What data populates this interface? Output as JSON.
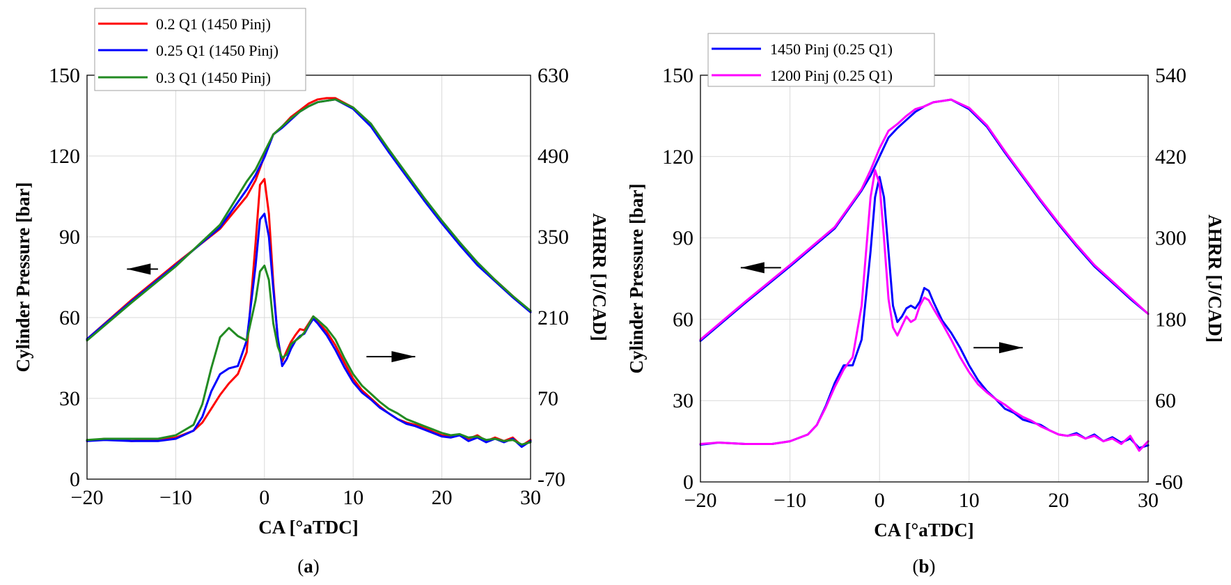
{
  "chart_data": [
    {
      "type": "line",
      "panel_label": "a",
      "xlabel": "CA [°aTDC]",
      "ylabel_left": "Cylinder Pressure [bar]",
      "ylabel_right": "AHRR [J/CAD]",
      "xlim": [
        -20,
        30
      ],
      "xticks": [
        -20,
        -10,
        0,
        10,
        20,
        30
      ],
      "xtick_labels": [
        "−20",
        "−10",
        "0",
        "10",
        "20",
        "30"
      ],
      "ylim_left": [
        0,
        150
      ],
      "yticks_left": [
        0,
        30,
        60,
        90,
        120,
        150
      ],
      "ylim_right": [
        -70,
        630
      ],
      "yticks_right": [
        -70,
        70,
        210,
        350,
        490,
        630
      ],
      "legend_position": "top-left",
      "arrows": [
        {
          "direction": "left",
          "x": [
            -15.5,
            -12
          ],
          "y_left": 78,
          "meaning": "pressure curves read on left axis"
        },
        {
          "direction": "right",
          "x": [
            11.5,
            17
          ],
          "y_left": 45.5,
          "meaning": "AHRR curves read on right axis"
        }
      ],
      "series": [
        {
          "name": "0.2 Q1 (1450 Pinj)",
          "color": "#ff0000",
          "axis": "left",
          "quantity": "pressure",
          "x": [
            -20,
            -15,
            -10,
            -5,
            -2,
            -1,
            0,
            1,
            2,
            3,
            4,
            5,
            6,
            7,
            8,
            10,
            12,
            14,
            16,
            18,
            20,
            22,
            24,
            26,
            28,
            30
          ],
          "y": [
            52,
            66.5,
            80,
            93,
            105,
            111,
            120,
            128,
            131,
            134.5,
            137,
            139.5,
            141,
            141.5,
            141.5,
            138,
            131.5,
            122,
            113,
            104,
            95.5,
            87.5,
            80,
            74,
            68,
            62
          ]
        },
        {
          "name": "0.25 Q1 (1450 Pinj)",
          "color": "#0000ff",
          "axis": "left",
          "quantity": "pressure",
          "x": [
            -20,
            -15,
            -10,
            -5,
            -2,
            -1,
            0,
            1,
            2,
            3,
            4,
            5,
            6,
            7,
            8,
            10,
            12,
            14,
            16,
            18,
            20,
            22,
            24,
            26,
            28,
            30
          ],
          "y": [
            52,
            66,
            79.5,
            93.5,
            107.5,
            113,
            119.5,
            128,
            130.5,
            133.5,
            136.5,
            138.5,
            140,
            140.5,
            141,
            137.5,
            131,
            121.5,
            112.5,
            103.5,
            95,
            87,
            79.5,
            73.5,
            67.5,
            62
          ]
        },
        {
          "name": "0.3 Q1 (1450 Pinj)",
          "color": "#228b22",
          "axis": "left",
          "quantity": "pressure",
          "x": [
            -20,
            -15,
            -10,
            -5,
            -2,
            -1,
            0,
            1,
            2,
            3,
            4,
            5,
            6,
            7,
            8,
            10,
            12,
            14,
            16,
            18,
            20,
            22,
            24,
            26,
            28,
            30
          ],
          "y": [
            51.5,
            65.5,
            79,
            94.5,
            110.5,
            115,
            121.5,
            128,
            131,
            134,
            136.5,
            138.5,
            140,
            140.5,
            141,
            138,
            132,
            122.5,
            113.5,
            104.5,
            96,
            88,
            80.5,
            74,
            68,
            62.5
          ]
        },
        {
          "name": "0.2 Q1 (1450 Pinj)",
          "color": "#ff0000",
          "axis": "right",
          "quantity": "AHRR",
          "x": [
            -20,
            -18,
            -15,
            -12,
            -10,
            -8,
            -7,
            -6,
            -5,
            -4,
            -3,
            -2,
            -1,
            -0.5,
            0,
            0.5,
            1,
            1.5,
            2,
            2.5,
            3,
            3.5,
            4,
            4.5,
            5,
            5.5,
            6,
            7,
            8,
            9,
            10,
            11,
            12,
            13,
            14,
            15,
            16,
            17,
            18,
            19,
            20,
            21,
            22,
            23,
            24,
            25,
            26,
            27,
            28,
            29,
            30
          ],
          "y": [
            -4,
            0,
            -4,
            -2,
            2,
            14,
            28,
            52,
            76,
            96,
            112,
            150,
            340,
            440,
            450,
            390,
            270,
            172,
            134,
            152,
            168,
            180,
            190,
            188,
            200,
            212,
            202,
            186,
            162,
            132,
            104,
            84,
            70,
            56,
            44,
            34,
            28,
            24,
            20,
            12,
            6,
            4,
            8,
            0,
            6,
            -4,
            2,
            -4,
            2,
            -12,
            -2
          ]
        },
        {
          "name": "0.25 Q1 (1450 Pinj)",
          "color": "#0000ff",
          "axis": "right",
          "quantity": "AHRR",
          "x": [
            -20,
            -18,
            -15,
            -12,
            -10,
            -8,
            -7,
            -6,
            -5,
            -4,
            -3,
            -2,
            -1,
            -0.5,
            0,
            0.5,
            1,
            1.5,
            2,
            2.5,
            3,
            3.5,
            4,
            4.5,
            5,
            5.5,
            6,
            7,
            8,
            9,
            10,
            11,
            12,
            13,
            14,
            15,
            16,
            17,
            18,
            19,
            20,
            21,
            22,
            23,
            24,
            25,
            26,
            27,
            28,
            29,
            30
          ],
          "y": [
            -4,
            -2,
            -4,
            -4,
            0,
            14,
            38,
            82,
            112,
            122,
            126,
            170,
            300,
            380,
            390,
            350,
            260,
            176,
            126,
            138,
            156,
            170,
            178,
            182,
            196,
            208,
            200,
            180,
            154,
            124,
            98,
            80,
            68,
            54,
            44,
            34,
            26,
            22,
            16,
            10,
            4,
            2,
            6,
            -4,
            2,
            -6,
            0,
            -6,
            0,
            -14,
            -4
          ]
        },
        {
          "name": "0.3 Q1 (1450 Pinj)",
          "color": "#228b22",
          "axis": "right",
          "quantity": "AHRR",
          "x": [
            -20,
            -18,
            -15,
            -12,
            -10,
            -8,
            -7,
            -6,
            -5,
            -4,
            -3,
            -2,
            -1,
            -0.5,
            0,
            0.5,
            1,
            1.5,
            2,
            2.5,
            3,
            3.5,
            4,
            4.5,
            5,
            5.5,
            6,
            7,
            8,
            9,
            10,
            11,
            12,
            13,
            14,
            15,
            16,
            17,
            18,
            19,
            20,
            21,
            22,
            23,
            24,
            25,
            26,
            27,
            28,
            29,
            30
          ],
          "y": [
            -2,
            0,
            0,
            0,
            6,
            24,
            60,
            122,
            176,
            192,
            178,
            170,
            240,
            290,
            300,
            275,
            200,
            160,
            140,
            146,
            164,
            170,
            176,
            184,
            198,
            212,
            206,
            192,
            172,
            140,
            112,
            92,
            78,
            64,
            52,
            44,
            34,
            28,
            22,
            16,
            10,
            6,
            8,
            2,
            4,
            -2,
            0,
            -4,
            -2,
            -10,
            -6
          ]
        },
        {
          "name": "1450 Pinj (0.25 Q1)",
          "color": "#0000ff",
          "axis": "left",
          "quantity": "pressure",
          "panel": "b"
        }
      ]
    },
    {
      "type": "line",
      "panel_label": "b",
      "xlabel": "CA [°aTDC]",
      "ylabel_left": "Cylinder Pressure [bar]",
      "ylabel_right": "AHRR [J/CAD]",
      "xlim": [
        -20,
        30
      ],
      "xticks": [
        -20,
        -10,
        0,
        10,
        20,
        30
      ],
      "xtick_labels": [
        "−20",
        "−10",
        "0",
        "10",
        "20",
        "30"
      ],
      "ylim_left": [
        0,
        150
      ],
      "yticks_left": [
        0,
        30,
        60,
        90,
        120,
        150
      ],
      "ylim_right": [
        -60,
        540
      ],
      "yticks_right": [
        -60,
        60,
        180,
        300,
        420,
        540
      ],
      "legend_position": "top-left",
      "arrows": [
        {
          "direction": "left",
          "x": [
            -15.5,
            -11
          ],
          "y_left": 79,
          "meaning": "pressure curves read on left axis"
        },
        {
          "direction": "right",
          "x": [
            10.5,
            16
          ],
          "y_left": 49.5,
          "meaning": "AHRR curves read on right axis"
        }
      ],
      "series": [
        {
          "name": "1450 Pinj (0.25 Q1)",
          "color": "#0000ff",
          "axis": "left",
          "quantity": "pressure",
          "x": [
            -20,
            -15,
            -10,
            -5,
            -2,
            -1,
            0,
            1,
            2,
            3,
            4,
            5,
            6,
            7,
            8,
            10,
            12,
            14,
            16,
            18,
            20,
            22,
            24,
            26,
            28,
            30
          ],
          "y": [
            52,
            66,
            79.5,
            93.5,
            107.5,
            113,
            120,
            127,
            130.5,
            133.5,
            136.5,
            138.5,
            140,
            140.5,
            141,
            137.5,
            131,
            121.5,
            112.5,
            103.5,
            95,
            87,
            79.5,
            73.5,
            67.5,
            62
          ]
        },
        {
          "name": "1200 Pinj (0.25 Q1)",
          "color": "#ff00ff",
          "axis": "left",
          "quantity": "pressure",
          "x": [
            -20,
            -15,
            -10,
            -5,
            -2,
            -1,
            0,
            1,
            2,
            3,
            4,
            5,
            6,
            7,
            8,
            10,
            12,
            14,
            16,
            18,
            20,
            22,
            24,
            26,
            28,
            30
          ],
          "y": [
            52.5,
            66.5,
            80,
            94,
            108,
            115,
            123,
            129.5,
            132,
            135,
            137.5,
            138.5,
            140,
            140.5,
            141,
            138,
            131.5,
            122,
            113,
            104,
            95.5,
            87.5,
            80,
            74,
            68,
            62
          ]
        },
        {
          "name": "1450 Pinj (0.25 Q1)",
          "color": "#0000ff",
          "axis": "right",
          "quantity": "AHRR",
          "x": [
            -20,
            -18,
            -15,
            -12,
            -10,
            -8,
            -7,
            -6,
            -5,
            -4,
            -3,
            -2,
            -1,
            -0.5,
            0,
            0.5,
            1,
            1.5,
            2,
            2.5,
            3,
            3.5,
            4,
            4.5,
            5,
            5.5,
            6,
            7,
            8,
            9,
            10,
            11,
            12,
            13,
            14,
            15,
            16,
            17,
            18,
            19,
            20,
            21,
            22,
            23,
            24,
            25,
            26,
            27,
            28,
            29,
            30
          ],
          "y": [
            -5,
            -2,
            -4,
            -4,
            0,
            10,
            24,
            52,
            86,
            112,
            112,
            150,
            280,
            360,
            390,
            360,
            280,
            200,
            176,
            184,
            196,
            200,
            196,
            206,
            226,
            222,
            206,
            178,
            160,
            138,
            112,
            90,
            74,
            62,
            48,
            42,
            32,
            28,
            24,
            16,
            10,
            8,
            12,
            4,
            10,
            0,
            6,
            -2,
            4,
            -10,
            -6
          ]
        },
        {
          "name": "1200 Pinj (0.25 Q1)",
          "color": "#ff00ff",
          "axis": "right",
          "quantity": "AHRR",
          "x": [
            -20,
            -18,
            -15,
            -12,
            -10,
            -8,
            -7,
            -6,
            -5,
            -4,
            -3,
            -2,
            -1,
            -0.5,
            0,
            0.5,
            1,
            1.5,
            2,
            2.5,
            3,
            3.5,
            4,
            4.5,
            5,
            5.5,
            6,
            7,
            8,
            9,
            10,
            11,
            12,
            13,
            14,
            15,
            16,
            17,
            18,
            19,
            20,
            21,
            22,
            23,
            24,
            25,
            26,
            27,
            28,
            29,
            30
          ],
          "y": [
            -4,
            -2,
            -4,
            -4,
            0,
            10,
            24,
            50,
            80,
            106,
            124,
            200,
            360,
            400,
            380,
            300,
            210,
            168,
            156,
            170,
            184,
            176,
            180,
            200,
            212,
            208,
            196,
            174,
            150,
            124,
            102,
            84,
            72,
            62,
            54,
            44,
            36,
            30,
            22,
            16,
            10,
            8,
            10,
            4,
            8,
            0,
            4,
            -4,
            8,
            -14,
            0
          ]
        }
      ]
    }
  ],
  "legend_a": [
    "0.2 Q1 (1450 Pinj)",
    "0.25 Q1 (1450 Pinj)",
    "0.3 Q1 (1450 Pinj)"
  ],
  "legend_b": [
    "1450 Pinj (0.25 Q1)",
    "1200 Pinj (0.25 Q1)"
  ],
  "colors": {
    "red": "#ff0000",
    "blue": "#0000ff",
    "green": "#228b22",
    "magenta": "#ff00ff"
  }
}
